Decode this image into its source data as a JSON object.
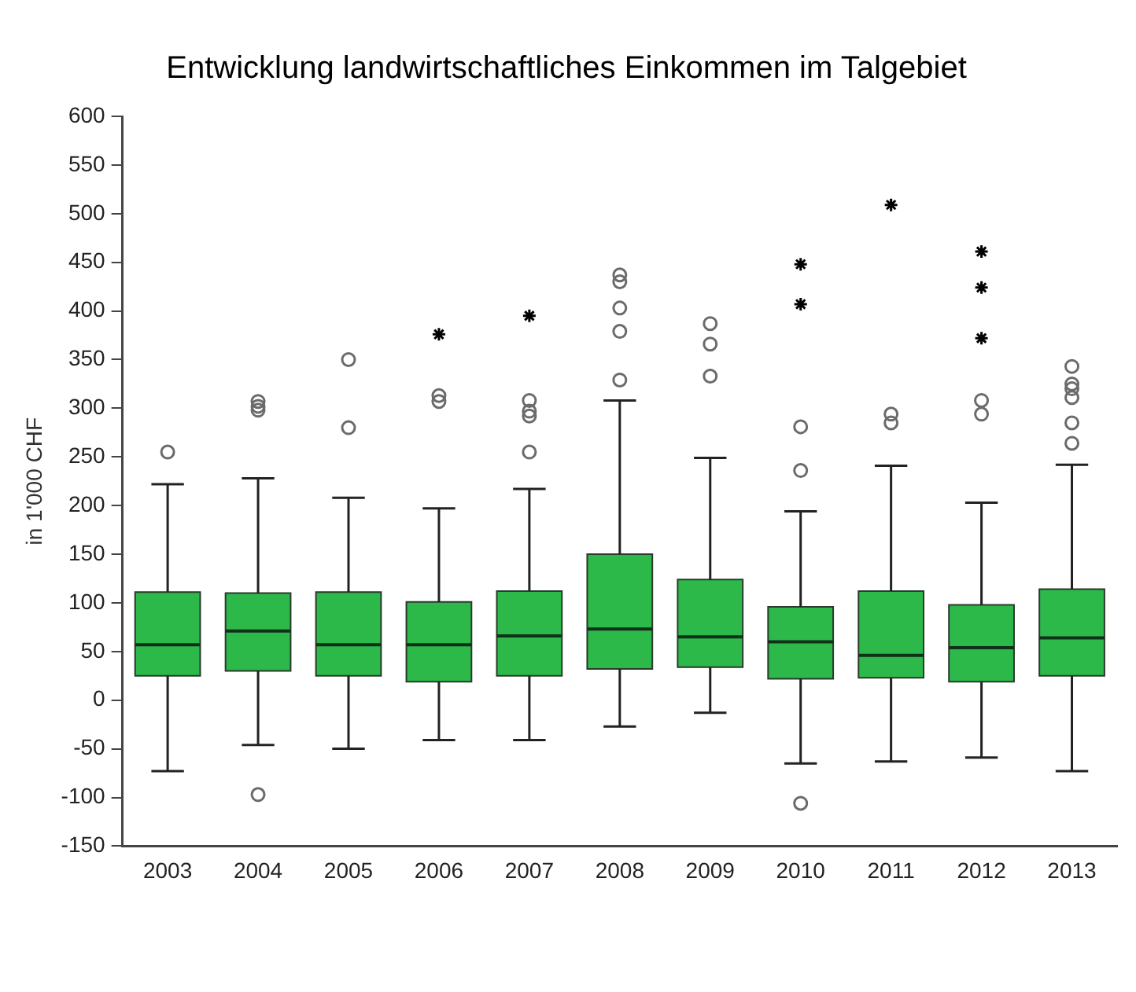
{
  "chart_data": {
    "type": "box",
    "title": "Entwicklung landwirtschaftliches Einkommen im Talgebiet",
    "ylabel": "in 1'000 CHF",
    "categories": [
      "2003",
      "2004",
      "2005",
      "2006",
      "2007",
      "2008",
      "2009",
      "2010",
      "2011",
      "2012",
      "2013"
    ],
    "ylim": [
      -150,
      600
    ],
    "yticks": [
      -150,
      -100,
      -50,
      0,
      50,
      100,
      150,
      200,
      250,
      300,
      350,
      400,
      450,
      500,
      550,
      600
    ],
    "grid": false,
    "legend": false,
    "series": [
      {
        "type": "box",
        "color": "#2db84a",
        "boxes": [
          {
            "low": -73,
            "q1": 25,
            "median": 57,
            "q3": 111,
            "high": 222,
            "outliers": [
              255
            ]
          },
          {
            "low": -46,
            "q1": 30,
            "median": 71,
            "q3": 110,
            "high": 228,
            "outliers": [
              298,
              302,
              307,
              -97
            ]
          },
          {
            "low": -50,
            "q1": 25,
            "median": 57,
            "q3": 111,
            "high": 208,
            "outliers": [
              350,
              280
            ]
          },
          {
            "low": -41,
            "q1": 19,
            "median": 57,
            "q3": 101,
            "high": 197,
            "outliers": [
              307,
              313
            ]
          },
          {
            "low": -41,
            "q1": 25,
            "median": 66,
            "q3": 112,
            "high": 217,
            "outliers": [
              255,
              292,
              297,
              308
            ]
          },
          {
            "low": -27,
            "q1": 32,
            "median": 73,
            "q3": 150,
            "high": 308,
            "outliers": [
              329,
              379,
              403,
              430,
              437
            ]
          },
          {
            "low": -13,
            "q1": 34,
            "median": 65,
            "q3": 124,
            "high": 249,
            "outliers": [
              333,
              366,
              387
            ]
          },
          {
            "low": -65,
            "q1": 22,
            "median": 60,
            "q3": 96,
            "high": 194,
            "outliers": [
              236,
              281,
              -106
            ]
          },
          {
            "low": -63,
            "q1": 23,
            "median": 46,
            "q3": 112,
            "high": 241,
            "outliers": [
              285,
              294
            ]
          },
          {
            "low": -59,
            "q1": 19,
            "median": 54,
            "q3": 98,
            "high": 203,
            "outliers": [
              294,
              308
            ]
          },
          {
            "low": -73,
            "q1": 25,
            "median": 64,
            "q3": 114,
            "high": 242,
            "outliers": [
              264,
              285,
              311,
              320,
              325,
              343
            ]
          }
        ]
      },
      {
        "type": "scatter",
        "marker": "cross",
        "color": "#000000",
        "values": [
          null,
          null,
          null,
          376,
          395,
          null,
          null,
          407,
          509,
          372,
          null
        ]
      },
      {
        "type": "scatter",
        "marker": "cross",
        "color": "#000000",
        "values": [
          null,
          null,
          null,
          null,
          null,
          null,
          null,
          448,
          null,
          424,
          null
        ]
      },
      {
        "type": "scatter",
        "marker": "cross",
        "color": "#000000",
        "values": [
          null,
          null,
          null,
          null,
          null,
          null,
          null,
          null,
          null,
          461,
          null
        ]
      }
    ]
  }
}
